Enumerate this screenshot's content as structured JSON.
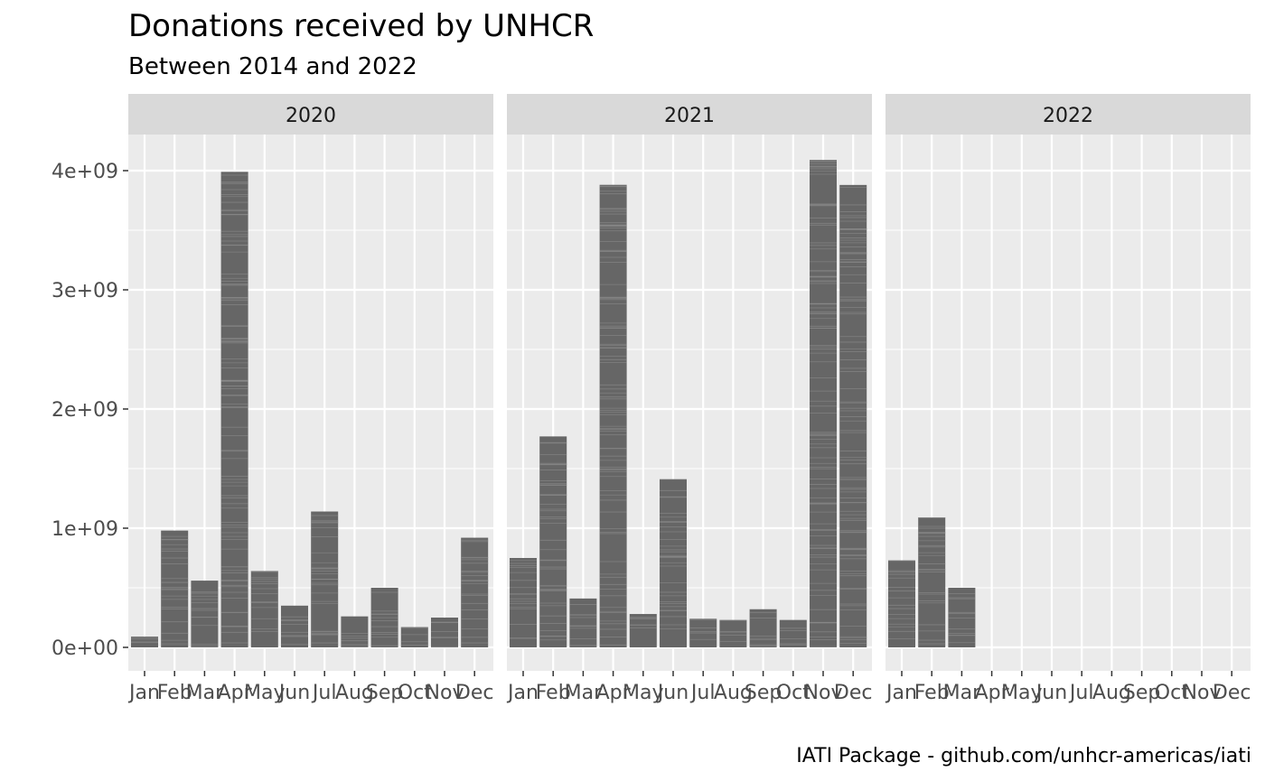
{
  "chart_data": {
    "type": "bar",
    "title": "Donations received by UNHCR",
    "subtitle": "Between 2014 and 2022",
    "caption": "IATI Package - github.com/unhcr-americas/iati",
    "xlabel": "",
    "ylabel": "",
    "ylim": [
      -200000000,
      4300000000
    ],
    "y_ticks": [
      0,
      1000000000,
      2000000000,
      3000000000,
      4000000000
    ],
    "y_tick_labels": [
      "0e+00",
      "1e+09",
      "2e+09",
      "3e+09",
      "4e+09"
    ],
    "categories": [
      "Jan",
      "Feb",
      "Mar",
      "Apr",
      "May",
      "Jun",
      "Jul",
      "Aug",
      "Sep",
      "Oct",
      "Nov",
      "Dec"
    ],
    "grid": true,
    "facets": [
      {
        "name": "2020",
        "values": [
          90000000,
          980000000,
          560000000,
          3990000000,
          640000000,
          350000000,
          1140000000,
          260000000,
          500000000,
          170000000,
          250000000,
          920000000
        ]
      },
      {
        "name": "2021",
        "values": [
          750000000,
          1770000000,
          410000000,
          3880000000,
          280000000,
          1410000000,
          240000000,
          230000000,
          320000000,
          230000000,
          4090000000,
          3880000000
        ]
      },
      {
        "name": "2022",
        "values": [
          730000000,
          1090000000,
          500000000,
          0,
          0,
          0,
          0,
          0,
          0,
          0,
          0,
          0
        ]
      }
    ],
    "colors": {
      "bar": "#666666",
      "panel": "#ebebeb",
      "strip": "#d9d9d9",
      "grid": "#ffffff",
      "stripe": "#8c8c8c"
    }
  }
}
